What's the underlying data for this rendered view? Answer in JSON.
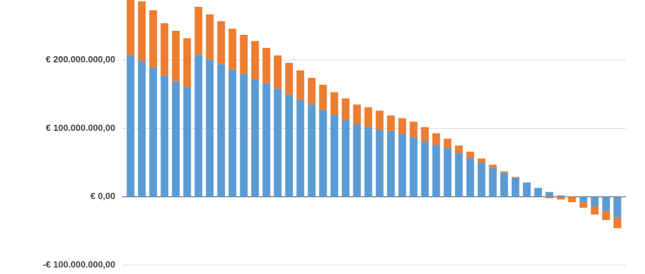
{
  "chart_data": {
    "type": "stacked_bar",
    "categories": [
      null,
      null,
      null,
      null,
      null,
      null,
      null,
      null,
      null,
      null,
      null,
      null,
      null,
      null,
      null,
      null,
      null,
      null,
      null,
      null,
      null,
      null,
      null,
      null,
      null,
      null,
      null,
      null,
      null,
      null,
      null,
      null,
      null,
      null,
      null,
      null,
      null,
      null,
      null,
      null,
      null,
      null,
      null,
      null
    ],
    "series": [
      {
        "color": "#5b9bd5",
        "values": [
          207000000,
          199000000,
          189000000,
          177000000,
          169000000,
          161000000,
          208000000,
          201000000,
          194000000,
          186000000,
          180000000,
          172000000,
          166000000,
          158000000,
          150000000,
          142000000,
          135000000,
          127000000,
          120000000,
          112000000,
          106000000,
          102000000,
          98000000,
          96000000,
          92000000,
          87000000,
          81000000,
          76000000,
          71000000,
          64000000,
          57000000,
          50000000,
          43000000,
          35000000,
          28000000,
          21000000,
          13000000,
          7000000,
          2000000,
          0,
          -8000000,
          -14000000,
          -21000000,
          -30000000
        ]
      },
      {
        "color": "#ed7d31",
        "values": [
          83000000,
          87000000,
          84000000,
          77000000,
          74000000,
          71000000,
          70000000,
          66000000,
          63000000,
          60000000,
          57000000,
          56000000,
          52000000,
          49000000,
          46000000,
          43000000,
          39000000,
          37000000,
          33000000,
          32000000,
          29000000,
          29000000,
          28000000,
          23000000,
          23000000,
          23000000,
          21000000,
          17000000,
          14000000,
          11000000,
          9000000,
          6000000,
          4000000,
          2000000,
          1000000,
          0,
          0,
          -2000000,
          -4000000,
          -8000000,
          -8000000,
          -12000000,
          -13000000,
          -16000000
        ]
      }
    ],
    "ylim": [
      -113000000,
      288000000
    ],
    "yticks": [
      {
        "value": -100000000,
        "label": "-€ 100.000.000,00"
      },
      {
        "value": 0,
        "label": "€ 0,00"
      },
      {
        "value": 100000000,
        "label": "€ 100.000.000,00"
      },
      {
        "value": 200000000,
        "label": "€ 200.000.000,00"
      }
    ],
    "grid": true
  }
}
